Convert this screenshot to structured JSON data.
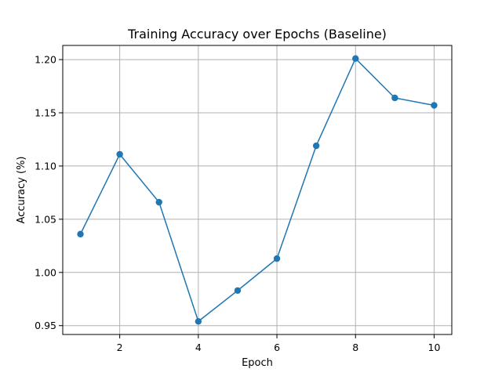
{
  "chart_data": {
    "type": "line",
    "title": "Training Accuracy over Epochs (Baseline)",
    "xlabel": "Epoch",
    "ylabel": "Accuracy (%)",
    "x": [
      1,
      2,
      3,
      4,
      5,
      6,
      7,
      8,
      9,
      10
    ],
    "series": [
      {
        "values": [
          1.036,
          1.111,
          1.066,
          0.954,
          0.983,
          1.013,
          1.119,
          1.201,
          1.164,
          1.157
        ],
        "color": "#1f77b4",
        "marker": "circle"
      }
    ],
    "xticks": [
      2,
      4,
      6,
      8,
      10
    ],
    "xtick_labels": [
      "2",
      "4",
      "6",
      "8",
      "10"
    ],
    "yticks": [
      0.95,
      1.0,
      1.05,
      1.1,
      1.15,
      1.2
    ],
    "ytick_labels": [
      "0.95",
      "1.00",
      "1.05",
      "1.10",
      "1.15",
      "1.20"
    ],
    "xlim": [
      0.55,
      10.45
    ],
    "ylim": [
      0.9417,
      1.2133
    ],
    "grid": true
  }
}
